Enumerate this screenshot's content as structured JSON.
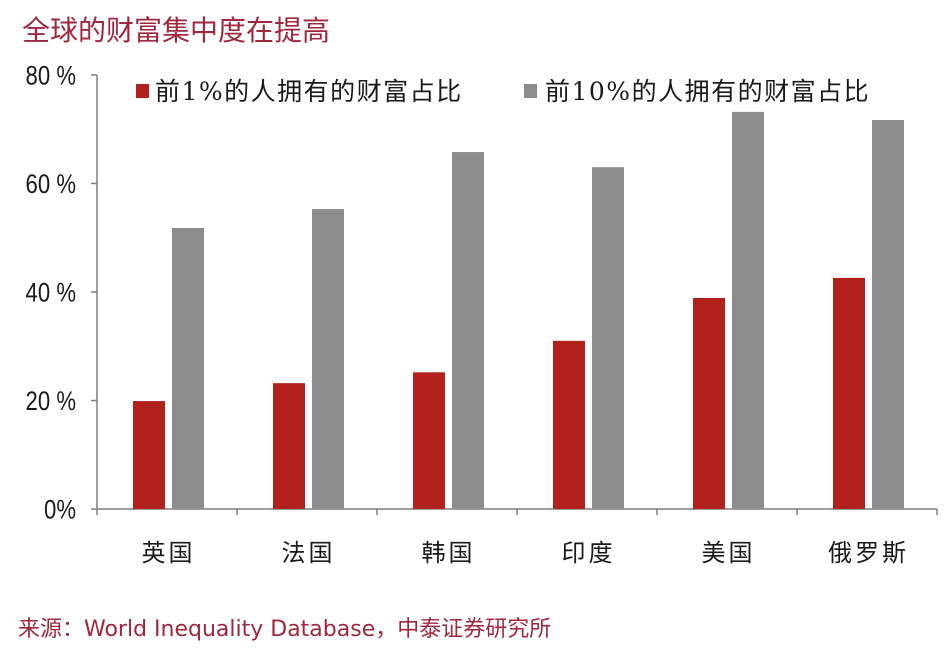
{
  "source": "来源：World Inequality Database，中泰证券研究所",
  "colors": {
    "title_text": "#a0283c",
    "source_text": "#a0283c",
    "axis": "#7f7f7f"
  },
  "chart_data": {
    "type": "bar",
    "title": "全球的财富集中度在提高",
    "categories": [
      "英国",
      "法国",
      "韩国",
      "印度",
      "美国",
      "俄罗斯"
    ],
    "series": [
      {
        "name": "前1%的人拥有的财富占比",
        "color": "#b3211c",
        "values": [
          19.9,
          23.2,
          25.2,
          31.0,
          38.9,
          42.6
        ]
      },
      {
        "name": "前10%的人拥有的财富占比",
        "color": "#8c8c8c",
        "values": [
          51.8,
          55.3,
          65.8,
          63.0,
          73.2,
          71.7
        ]
      }
    ],
    "ylim": [
      0,
      80
    ],
    "yticks": [
      0,
      20,
      40,
      60,
      80
    ],
    "ytick_labels": [
      "0%",
      "20 %",
      "40 %",
      "60 %",
      "80 %"
    ],
    "legend": "top",
    "grid": false
  }
}
